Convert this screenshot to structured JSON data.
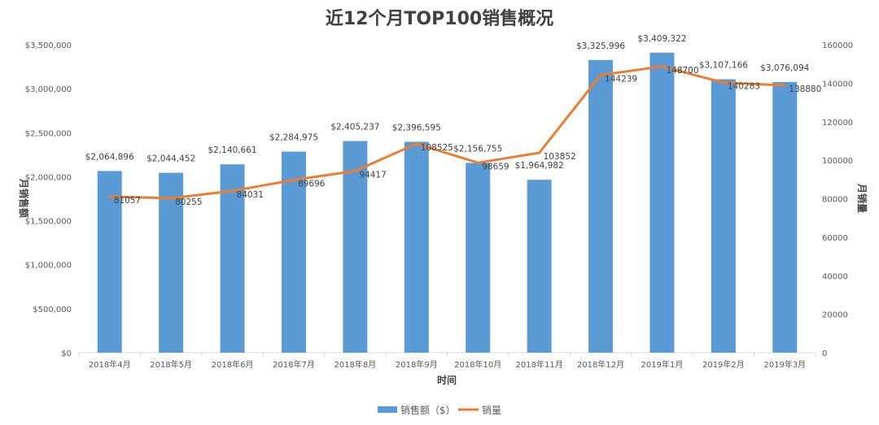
{
  "chart_data": {
    "type": "bar+line",
    "title": "近12个月TOP100销售概况",
    "xlabel": "时间",
    "ylabel": "月销售额",
    "y2label": "月销量",
    "categories": [
      "2018年4月",
      "2018年5月",
      "2018年6月",
      "2018年7月",
      "2018年8月",
      "2018年9月",
      "2018年10月",
      "2018年11月",
      "2018年12月",
      "2019年1月",
      "2019年2月",
      "2019年3月"
    ],
    "series": [
      {
        "name": "销售额（$）",
        "type": "bar",
        "axis": "left",
        "color": "#5B9BD5",
        "values": [
          2064896,
          2044452,
          2140661,
          2284975,
          2405237,
          2396595,
          2156755,
          1964982,
          3325996,
          3409322,
          3107166,
          3076094
        ],
        "labels": [
          "$2,064,896",
          "$2,044,452",
          "$2,140,661",
          "$2,284,975",
          "$2,405,237",
          "$2,396,595",
          "$2,156,755",
          "$1,964,982",
          "$3,325,996",
          "$3,409,322",
          "$3,107,166",
          "$3,076,094"
        ]
      },
      {
        "name": "销量",
        "type": "line",
        "axis": "right",
        "color": "#ED7D31",
        "values": [
          81057,
          80255,
          84031,
          89696,
          94417,
          108525,
          98659,
          103852,
          144239,
          148700,
          140283,
          138880
        ],
        "labels": [
          "81057",
          "80255",
          "84031",
          "89696",
          "94417",
          "108525",
          "98659",
          "103852",
          "144239",
          "148700",
          "140283",
          "138880"
        ]
      }
    ],
    "ylim": [
      0,
      3500000
    ],
    "y2lim": [
      0,
      160000
    ],
    "yticks": [
      "$0",
      "$500,000",
      "$1,000,000",
      "$1,500,000",
      "$2,000,000",
      "$2,500,000",
      "$3,000,000",
      "$3,500,000"
    ],
    "y2ticks": [
      "0",
      "20000",
      "40000",
      "60000",
      "80000",
      "100000",
      "120000",
      "140000",
      "160000"
    ],
    "grid": false,
    "legend": "bottom"
  }
}
